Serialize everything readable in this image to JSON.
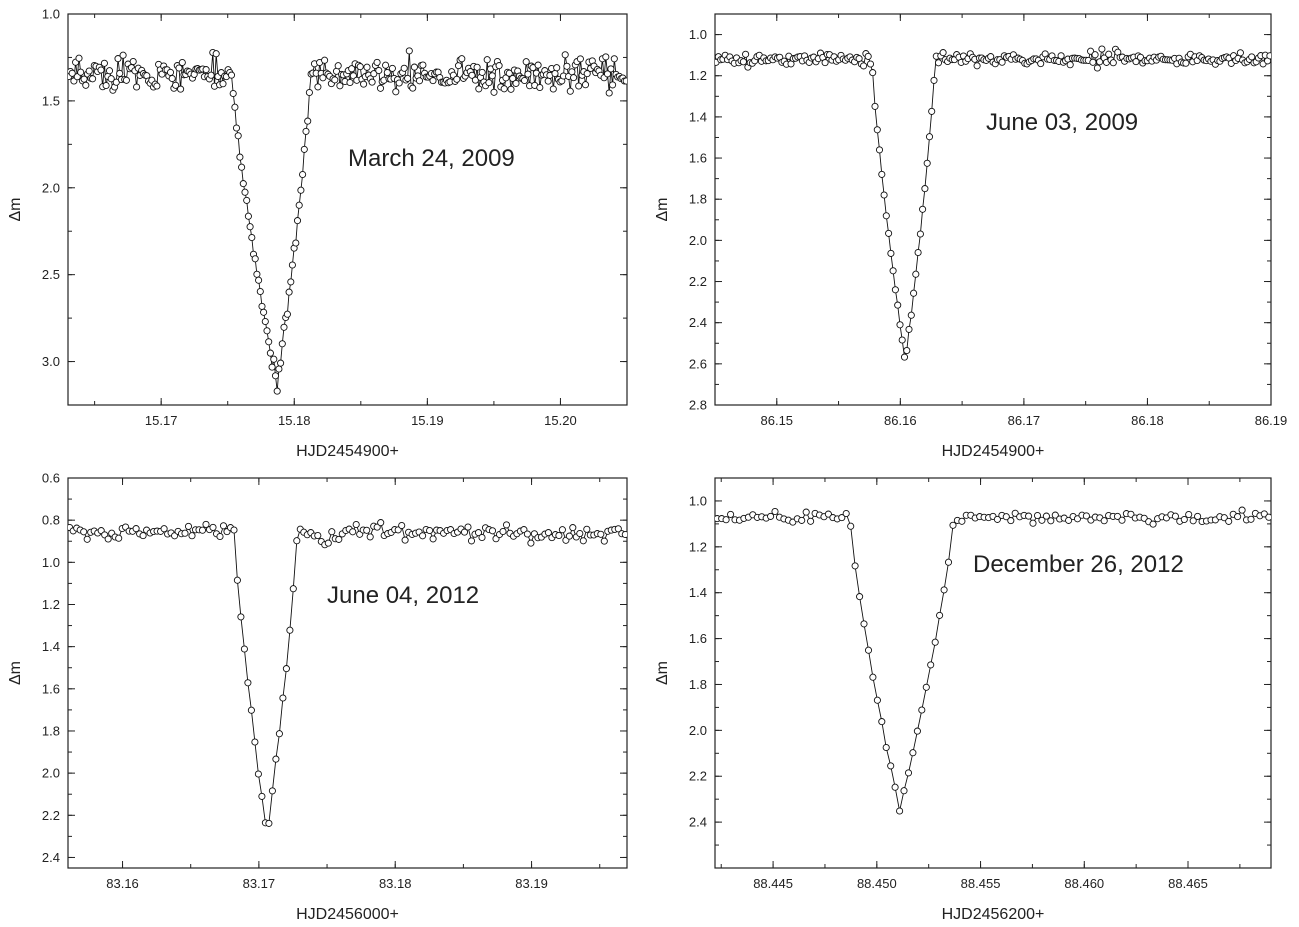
{
  "chart_data": [
    {
      "type": "scatter",
      "connected": true,
      "marker": "open-circle",
      "annotation": "March 24, 2009",
      "xlabel": "HJD2454900+",
      "ylabel": "Δm",
      "xlim": [
        15.163,
        15.205
      ],
      "ylim": [
        1.0,
        3.25
      ],
      "y_inverted": true,
      "xticks": [
        "15.17",
        "15.18",
        "15.19",
        "15.20"
      ],
      "yticks": [
        "1.0",
        "1.5",
        "2.0",
        "2.5",
        "3.0"
      ],
      "eclipse": {
        "start": 15.1753,
        "mid": 15.1787,
        "end": 15.1812,
        "min_depth": 3.15
      },
      "baseline": 1.35,
      "noise": 0.045,
      "n_points": 330
    },
    {
      "type": "scatter",
      "connected": true,
      "marker": "open-circle",
      "annotation": "June 03, 2009",
      "xlabel": "HJD2454900+",
      "ylabel": "Δm",
      "xlim": [
        86.145,
        86.19
      ],
      "ylim": [
        0.9,
        2.8
      ],
      "y_inverted": true,
      "xticks": [
        "86.15",
        "86.16",
        "86.17",
        "86.18",
        "86.19"
      ],
      "yticks": [
        "1.0",
        "1.2",
        "1.4",
        "1.6",
        "1.8",
        "2.0",
        "2.2",
        "2.4",
        "2.6",
        "2.8"
      ],
      "eclipse": {
        "start": 86.1577,
        "mid": 86.1604,
        "end": 86.1628,
        "min_depth": 2.6
      },
      "baseline": 1.12,
      "noise": 0.015,
      "n_points": 245
    },
    {
      "type": "scatter",
      "connected": true,
      "marker": "open-circle",
      "annotation": "June 04, 2012",
      "xlabel": "HJD2456000+",
      "ylabel": "Δm",
      "xlim": [
        83.156,
        83.197
      ],
      "ylim": [
        0.6,
        2.45
      ],
      "y_inverted": true,
      "xticks": [
        "83.16",
        "83.17",
        "83.18",
        "83.19"
      ],
      "yticks": [
        "0.6",
        "0.8",
        "1.0",
        "1.2",
        "1.4",
        "1.6",
        "1.8",
        "2.0",
        "2.2",
        "2.4"
      ],
      "eclipse": {
        "start": 83.1682,
        "mid": 83.1706,
        "end": 83.1728,
        "min_depth": 2.3
      },
      "baseline": 0.86,
      "noise": 0.022,
      "n_points": 160
    },
    {
      "type": "scatter",
      "connected": true,
      "marker": "open-circle",
      "annotation": "December 26, 2012",
      "xlabel": "HJD2456200+",
      "ylabel": "Δm",
      "xlim": [
        88.4422,
        88.469
      ],
      "ylim": [
        0.9,
        2.6
      ],
      "y_inverted": true,
      "xticks": [
        "88.445",
        "88.450",
        "88.455",
        "88.460",
        "88.465"
      ],
      "yticks": [
        "1.0",
        "1.2",
        "1.4",
        "1.6",
        "1.8",
        "2.0",
        "2.2",
        "2.4"
      ],
      "eclipse": {
        "start": 88.4487,
        "mid": 88.4511,
        "end": 88.4537,
        "min_depth": 2.35
      },
      "baseline": 1.07,
      "noise": 0.013,
      "n_points": 125
    }
  ]
}
